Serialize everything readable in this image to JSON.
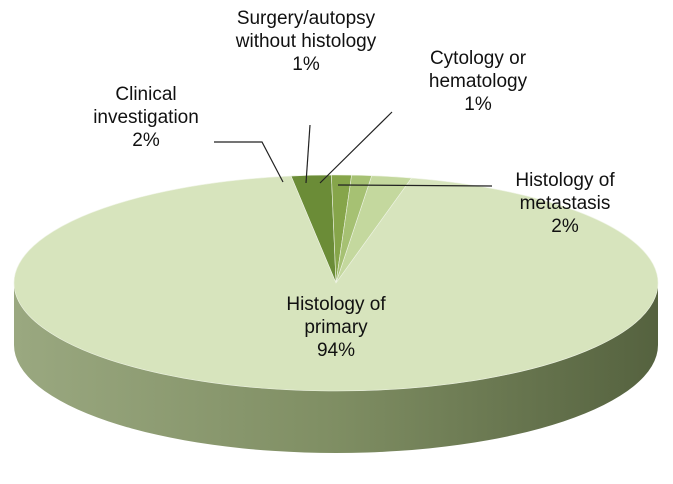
{
  "chart_data": {
    "type": "pie",
    "three_d": true,
    "categories": [
      "Clinical investigation",
      "Surgery/autopsy without histology",
      "Cytology or hematology",
      "Histology of metastasis",
      "Histology of primary"
    ],
    "values": [
      2,
      1,
      1,
      2,
      94
    ],
    "value_labels": [
      "2%",
      "1%",
      "1%",
      "2%",
      "94%"
    ],
    "colors": [
      "#6b8c37",
      "#86a54a",
      "#a6c173",
      "#c4d89e",
      "#d7e4bd"
    ]
  }
}
